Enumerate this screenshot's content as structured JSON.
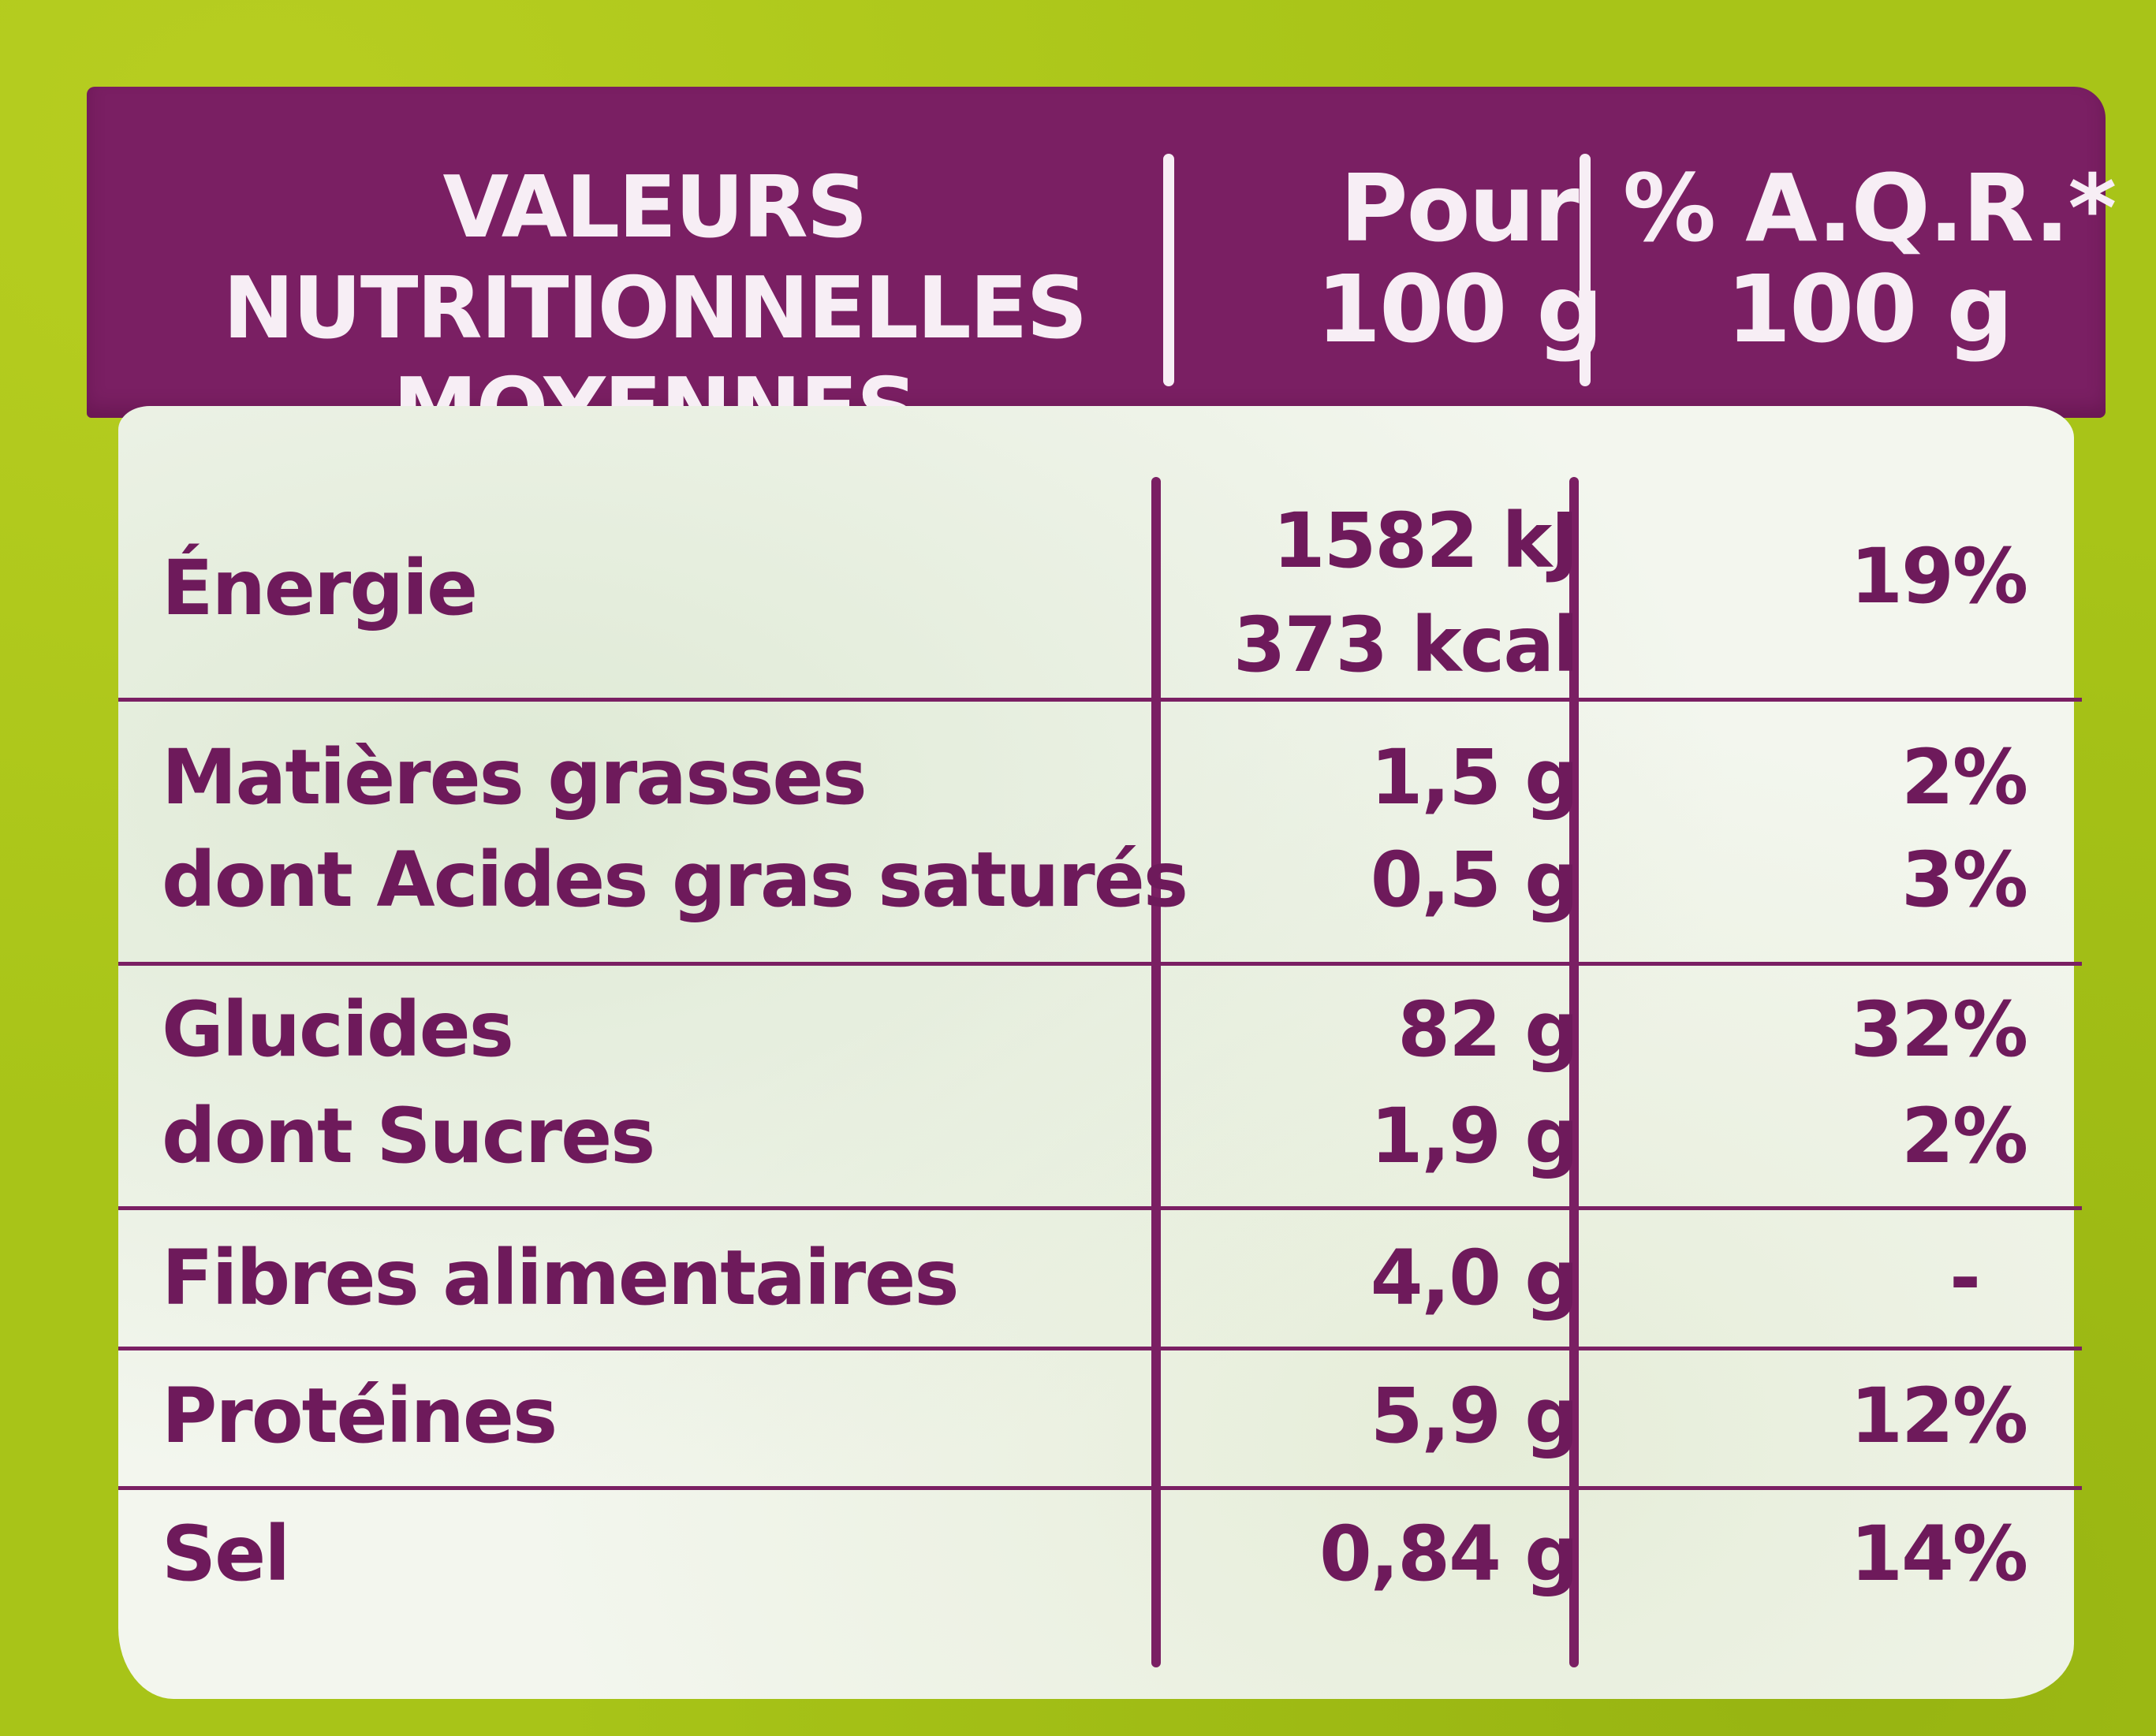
{
  "header": {
    "col1_line1": "VALEURS NUTRITIONNELLES",
    "col1_line2": "MOYENNES",
    "col2_line1": "Pour",
    "col2_line2": "100 g",
    "col3_line1": "% A.Q.R.*",
    "col3_line2": "100 g"
  },
  "rows": [
    {
      "name": "Énergie",
      "value": "1582 kJ",
      "value2": "373 kcal",
      "pct": "19%"
    },
    {
      "name": "Matières grasses",
      "value": "1,5 g",
      "pct": "2%"
    },
    {
      "name": "dont Acides gras saturés",
      "value": "0,5 g",
      "pct": "3%"
    },
    {
      "name": "Glucides",
      "value": "82 g",
      "pct": "32%"
    },
    {
      "name": "dont Sucres",
      "value": "1,9 g",
      "pct": "2%"
    },
    {
      "name": "Fibres alimentaires",
      "value": "4,0 g",
      "pct": "-"
    },
    {
      "name": "Protéines",
      "value": "5,9 g",
      "pct": "12%"
    },
    {
      "name": "Sel",
      "value": "0,84 g",
      "pct": "14%"
    }
  ],
  "colors": {
    "header_bg": "#7a1f63",
    "text": "#6e1a5b",
    "panel_bg": "#f3f6ee",
    "package_bg": "#a8c418"
  }
}
